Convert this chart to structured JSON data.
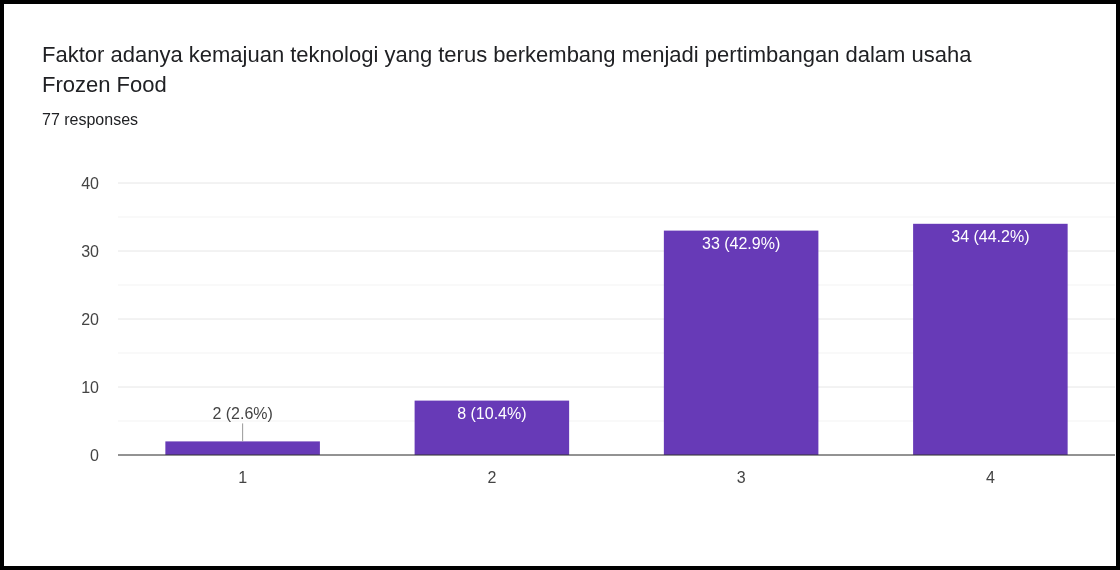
{
  "chart_data": {
    "type": "bar",
    "title": "Faktor adanya kemajuan teknologi yang terus berkembang menjadi pertimbangan dalam usaha Frozen Food",
    "subtitle": "77 responses",
    "categories": [
      "1",
      "2",
      "3",
      "4"
    ],
    "values": [
      2,
      8,
      33,
      34
    ],
    "value_labels": [
      "2 (2.6%)",
      "8 (10.4%)",
      "33 (42.9%)",
      "34 (44.2%)"
    ],
    "color": "#673ab7",
    "ylim": [
      0,
      40
    ],
    "yticks": [
      0,
      {
        "value": 5,
        "label": null
      },
      10,
      {
        "value": 15,
        "label": null
      },
      20,
      {
        "value": 25,
        "label": null
      },
      30,
      {
        "value": 35,
        "label": null
      },
      40
    ],
    "grid": "y"
  }
}
